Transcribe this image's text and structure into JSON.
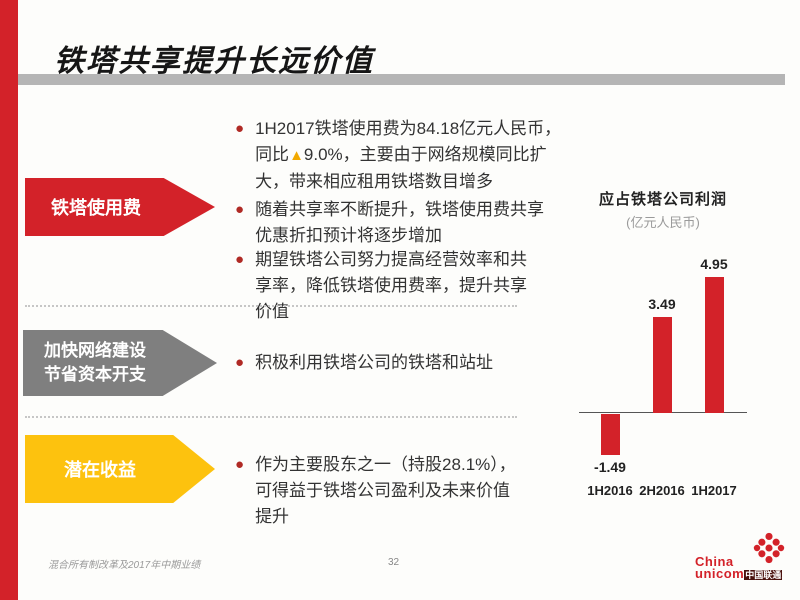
{
  "slide": {
    "title": "铁塔共享提升长远价值",
    "accent_color": "#d32229"
  },
  "sections": [
    {
      "arrow_label": "铁塔使用费",
      "arrow_color": "#d32229",
      "bullets": [
        {
          "before": "1H2017铁塔使用费为84.18亿元人民币，同比",
          "triangle": "▲",
          "triangle_color": "#f2a900",
          "after": "9.0%，主要由于网络规模同比扩大，带来相应租用铁塔数目增多"
        },
        {
          "text": "随着共享率不断提升，铁塔使用费共享优惠折扣预计将逐步增加"
        },
        {
          "text": "期望铁塔公司努力提高经营效率和共享率，降低铁塔使用费率，提升共享价值"
        }
      ]
    },
    {
      "arrow_label_line1": "加快网络建设",
      "arrow_label_line2": "节省资本开支",
      "arrow_color": "#7f7f7f",
      "bullets": [
        {
          "text": "积极利用铁塔公司的铁塔和站址"
        }
      ]
    },
    {
      "arrow_label": "潜在收益",
      "arrow_color": "#fdc20e",
      "bullets": [
        {
          "text": "作为主要股东之一（持股28.1%），可得益于铁塔公司盈利及未来价值提升"
        }
      ]
    }
  ],
  "chart_data": {
    "type": "bar",
    "title": "应占铁塔公司利润",
    "subtitle": "(亿元人民币)",
    "categories": [
      "1H2016",
      "2H2016",
      "1H2017"
    ],
    "values": [
      -1.49,
      3.49,
      4.95
    ],
    "value_labels": [
      "-1.49",
      "3.49",
      "4.95"
    ],
    "bar_color": "#d32229",
    "baseline": 0,
    "ylim": [
      -2,
      5.5
    ],
    "grid": false,
    "legend": false
  },
  "footer": {
    "report_title": "混合所有制改革及2017年中期业绩",
    "page_number": "32"
  },
  "logo": {
    "brand_line1": "China",
    "brand_line2": "unicom",
    "cn": "中国联通",
    "color": "#d32229"
  }
}
